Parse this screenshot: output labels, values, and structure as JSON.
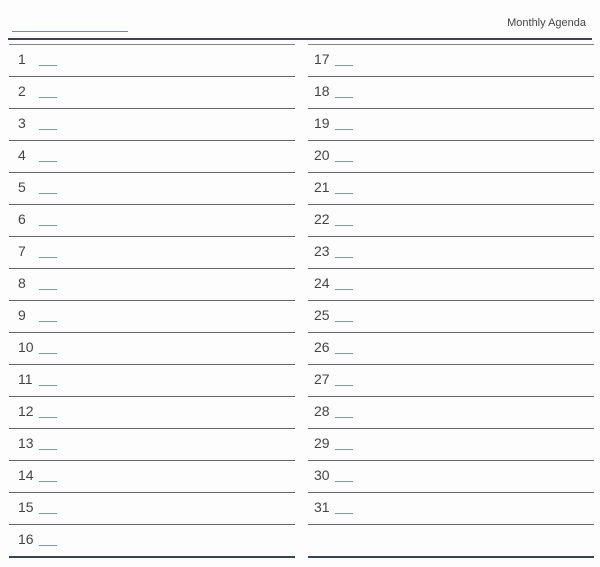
{
  "header": {
    "title": "Monthly Agenda"
  },
  "left_column": {
    "days": [
      "1",
      "2",
      "3",
      "4",
      "5",
      "6",
      "7",
      "8",
      "9",
      "10",
      "11",
      "12",
      "13",
      "14",
      "15",
      "16"
    ]
  },
  "right_column": {
    "days": [
      "17",
      "18",
      "19",
      "20",
      "21",
      "22",
      "23",
      "24",
      "25",
      "26",
      "27",
      "28",
      "29",
      "30",
      "31",
      ""
    ]
  }
}
